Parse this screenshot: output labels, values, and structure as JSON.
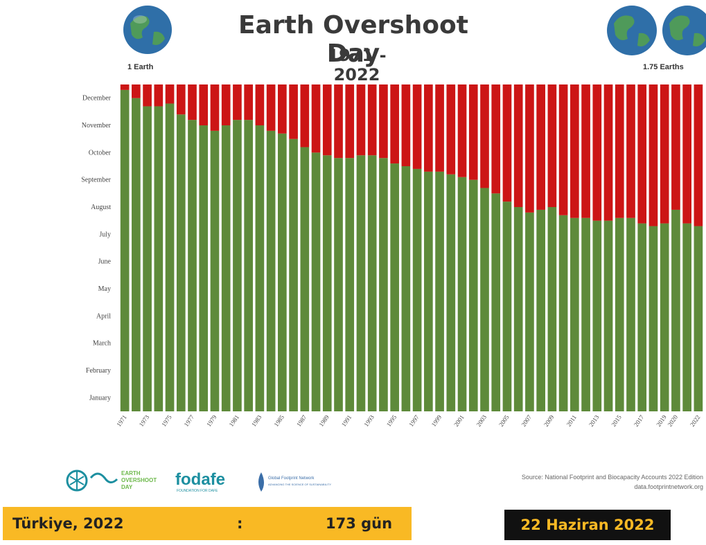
{
  "header": {
    "title": "Earth Overshoot Day",
    "subtitle": "1971 - 2022",
    "left_globe_label": "1 Earth",
    "right_globe_label": "1.75 Earths",
    "globe_icon": "earth-globe-icon"
  },
  "chart_data": {
    "type": "bar",
    "stacked": true,
    "title": "Earth Overshoot Day",
    "subtitle": "1971 - 2022",
    "y_unit": "month",
    "y_tick_labels": [
      "January",
      "February",
      "March",
      "April",
      "May",
      "June",
      "July",
      "August",
      "September",
      "October",
      "November",
      "December"
    ],
    "ylim": [
      0,
      12
    ],
    "x_tick_labels": [
      "1971",
      "1973",
      "1975",
      "1977",
      "1979",
      "1981",
      "1983",
      "1985",
      "1987",
      "1989",
      "1991",
      "1993",
      "1995",
      "1997",
      "1999",
      "2001",
      "2003",
      "2005",
      "2007",
      "2009",
      "2011",
      "2013",
      "2015",
      "2017",
      "2019",
      "2020",
      "2022"
    ],
    "categories": [
      1971,
      1972,
      1973,
      1974,
      1975,
      1976,
      1977,
      1978,
      1979,
      1980,
      1981,
      1982,
      1983,
      1984,
      1985,
      1986,
      1987,
      1988,
      1989,
      1990,
      1991,
      1992,
      1993,
      1994,
      1995,
      1996,
      1997,
      1998,
      1999,
      2000,
      2001,
      2002,
      2003,
      2004,
      2005,
      2006,
      2007,
      2008,
      2009,
      2010,
      2011,
      2012,
      2013,
      2014,
      2015,
      2016,
      2017,
      2018,
      2019,
      2020,
      2021,
      2022
    ],
    "series": [
      {
        "color": "#5e8a3a",
        "values": [
          11.8,
          11.5,
          11.2,
          11.2,
          11.3,
          10.9,
          10.7,
          10.5,
          10.3,
          10.5,
          10.7,
          10.7,
          10.5,
          10.3,
          10.2,
          10.0,
          9.7,
          9.5,
          9.4,
          9.3,
          9.3,
          9.4,
          9.4,
          9.3,
          9.1,
          9.0,
          8.9,
          8.8,
          8.8,
          8.7,
          8.6,
          8.5,
          8.2,
          8.0,
          7.7,
          7.5,
          7.3,
          7.4,
          7.5,
          7.2,
          7.1,
          7.1,
          7.0,
          7.0,
          7.1,
          7.1,
          6.9,
          6.8,
          6.9,
          7.4,
          6.9,
          6.8
        ]
      },
      {
        "color": "#cc1515",
        "values": [
          0.2,
          0.5,
          0.8,
          0.8,
          0.7,
          1.1,
          1.3,
          1.5,
          1.7,
          1.5,
          1.3,
          1.3,
          1.5,
          1.7,
          1.8,
          2.0,
          2.3,
          2.5,
          2.6,
          2.7,
          2.7,
          2.6,
          2.6,
          2.7,
          2.9,
          3.0,
          3.1,
          3.2,
          3.2,
          3.3,
          3.4,
          3.5,
          3.8,
          4.0,
          4.3,
          4.5,
          4.7,
          4.6,
          4.5,
          4.8,
          4.9,
          4.9,
          5.0,
          5.0,
          4.9,
          4.9,
          5.1,
          5.2,
          5.1,
          4.6,
          5.1,
          5.2
        ]
      }
    ],
    "grid": false,
    "legend": "none"
  },
  "footer": {
    "logo_earth_overshoot": [
      "EARTH",
      "OVERSHOOT",
      "DAY"
    ],
    "logo_fodafe": "fodafe",
    "logo_fodafe_sub": "FOUNDATION FOR DAFE",
    "logo_gfn": "Global Footprint Network",
    "logo_gfn_sub": "ADVANCING THE SCIENCE OF SUSTAINABILITY",
    "source_line1": "Source: National Footprint and Biocapacity Accounts 2022 Edition",
    "source_line2": "data.footprintnetwork.org",
    "country_label": "Türkiye, 2022",
    "separator": ":",
    "days_value": "173 gün",
    "date_label": "22 Haziran 2022"
  }
}
